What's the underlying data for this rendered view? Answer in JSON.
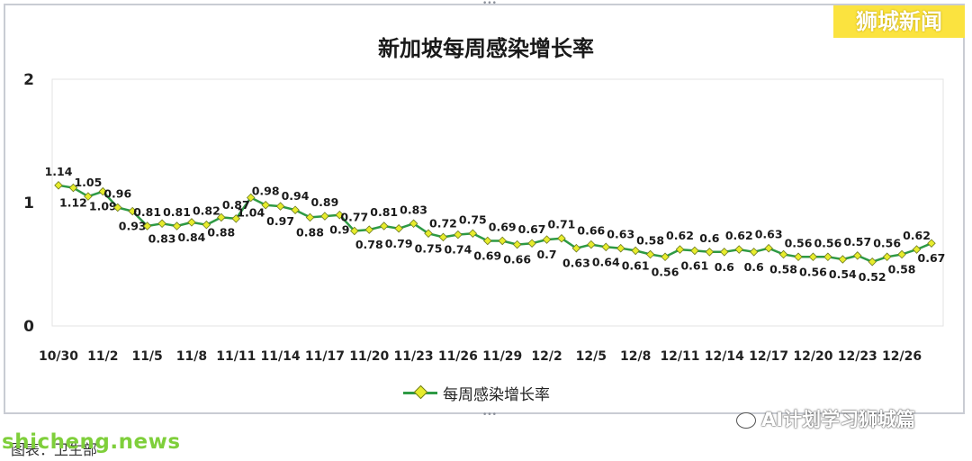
{
  "header": {
    "corner_label": "狮城新闻"
  },
  "footer": {
    "wechat_watermark": "AI计划学习狮城篇",
    "site_watermark": "shicheng.news",
    "caption": "图表：卫生部"
  },
  "chart_data": {
    "type": "line",
    "title": "新加坡每周感染增长率",
    "xlabel": "",
    "ylabel": "",
    "ylim": [
      0,
      2
    ],
    "yticks": [
      0,
      1,
      2
    ],
    "grid": false,
    "legend_position": "bottom",
    "x": [
      "10/30",
      "10/31",
      "11/1",
      "11/2",
      "11/3",
      "11/4",
      "11/5",
      "11/6",
      "11/7",
      "11/8",
      "11/9",
      "11/10",
      "11/11",
      "11/12",
      "11/13",
      "11/14",
      "11/15",
      "11/16",
      "11/17",
      "11/18",
      "11/19",
      "11/20",
      "11/21",
      "11/22",
      "11/23",
      "11/24",
      "11/25",
      "11/26",
      "11/27",
      "11/28",
      "11/29",
      "11/30",
      "12/1",
      "12/2",
      "12/3",
      "12/4",
      "12/5",
      "12/6",
      "12/7",
      "12/8",
      "12/9",
      "12/10",
      "12/11",
      "12/12",
      "12/13",
      "12/14",
      "12/15",
      "12/16",
      "12/17",
      "12/18",
      "12/19",
      "12/20",
      "12/21",
      "12/22",
      "12/23",
      "12/24",
      "12/25",
      "12/26",
      "12/27",
      "12/28"
    ],
    "x_tick_labels": [
      "10/30",
      "11/2",
      "11/5",
      "11/8",
      "11/11",
      "11/14",
      "11/17",
      "11/20",
      "11/23",
      "11/26",
      "11/29",
      "12/2",
      "12/5",
      "12/8",
      "12/11",
      "12/14",
      "12/17",
      "12/20",
      "12/23",
      "12/26"
    ],
    "series": [
      {
        "name": "每周感染增长率",
        "color": "#2e9a44",
        "marker_color": "#e7ec2c",
        "values": [
          1.14,
          1.12,
          1.05,
          1.09,
          0.96,
          0.93,
          0.81,
          0.83,
          0.81,
          0.84,
          0.82,
          0.88,
          0.87,
          1.04,
          0.98,
          0.97,
          0.94,
          0.88,
          0.89,
          0.9,
          0.77,
          0.78,
          0.81,
          0.79,
          0.83,
          0.75,
          0.72,
          0.74,
          0.75,
          0.69,
          0.69,
          0.66,
          0.67,
          0.7,
          0.71,
          0.63,
          0.66,
          0.64,
          0.63,
          0.61,
          0.58,
          0.56,
          0.62,
          0.61,
          0.6,
          0.6,
          0.62,
          0.6,
          0.63,
          0.58,
          0.56,
          0.56,
          0.56,
          0.54,
          0.57,
          0.52,
          0.56,
          0.58,
          0.62,
          0.67
        ],
        "label_positions": [
          "above",
          "below",
          "above",
          "below",
          "above",
          "below",
          "above",
          "below",
          "above",
          "below",
          "above",
          "below",
          "above",
          "below",
          "above",
          "below",
          "above",
          "below",
          "above",
          "below",
          "above",
          "below",
          "above",
          "below",
          "above",
          "below",
          "above",
          "below",
          "above",
          "below",
          "above",
          "below",
          "above",
          "below",
          "above",
          "below",
          "above",
          "below",
          "above",
          "below",
          "above",
          "below",
          "above",
          "below",
          "above",
          "below",
          "above",
          "below",
          "above",
          "below",
          "above",
          "below",
          "above",
          "below",
          "above",
          "below",
          "above",
          "below",
          "above",
          "below"
        ]
      }
    ]
  }
}
